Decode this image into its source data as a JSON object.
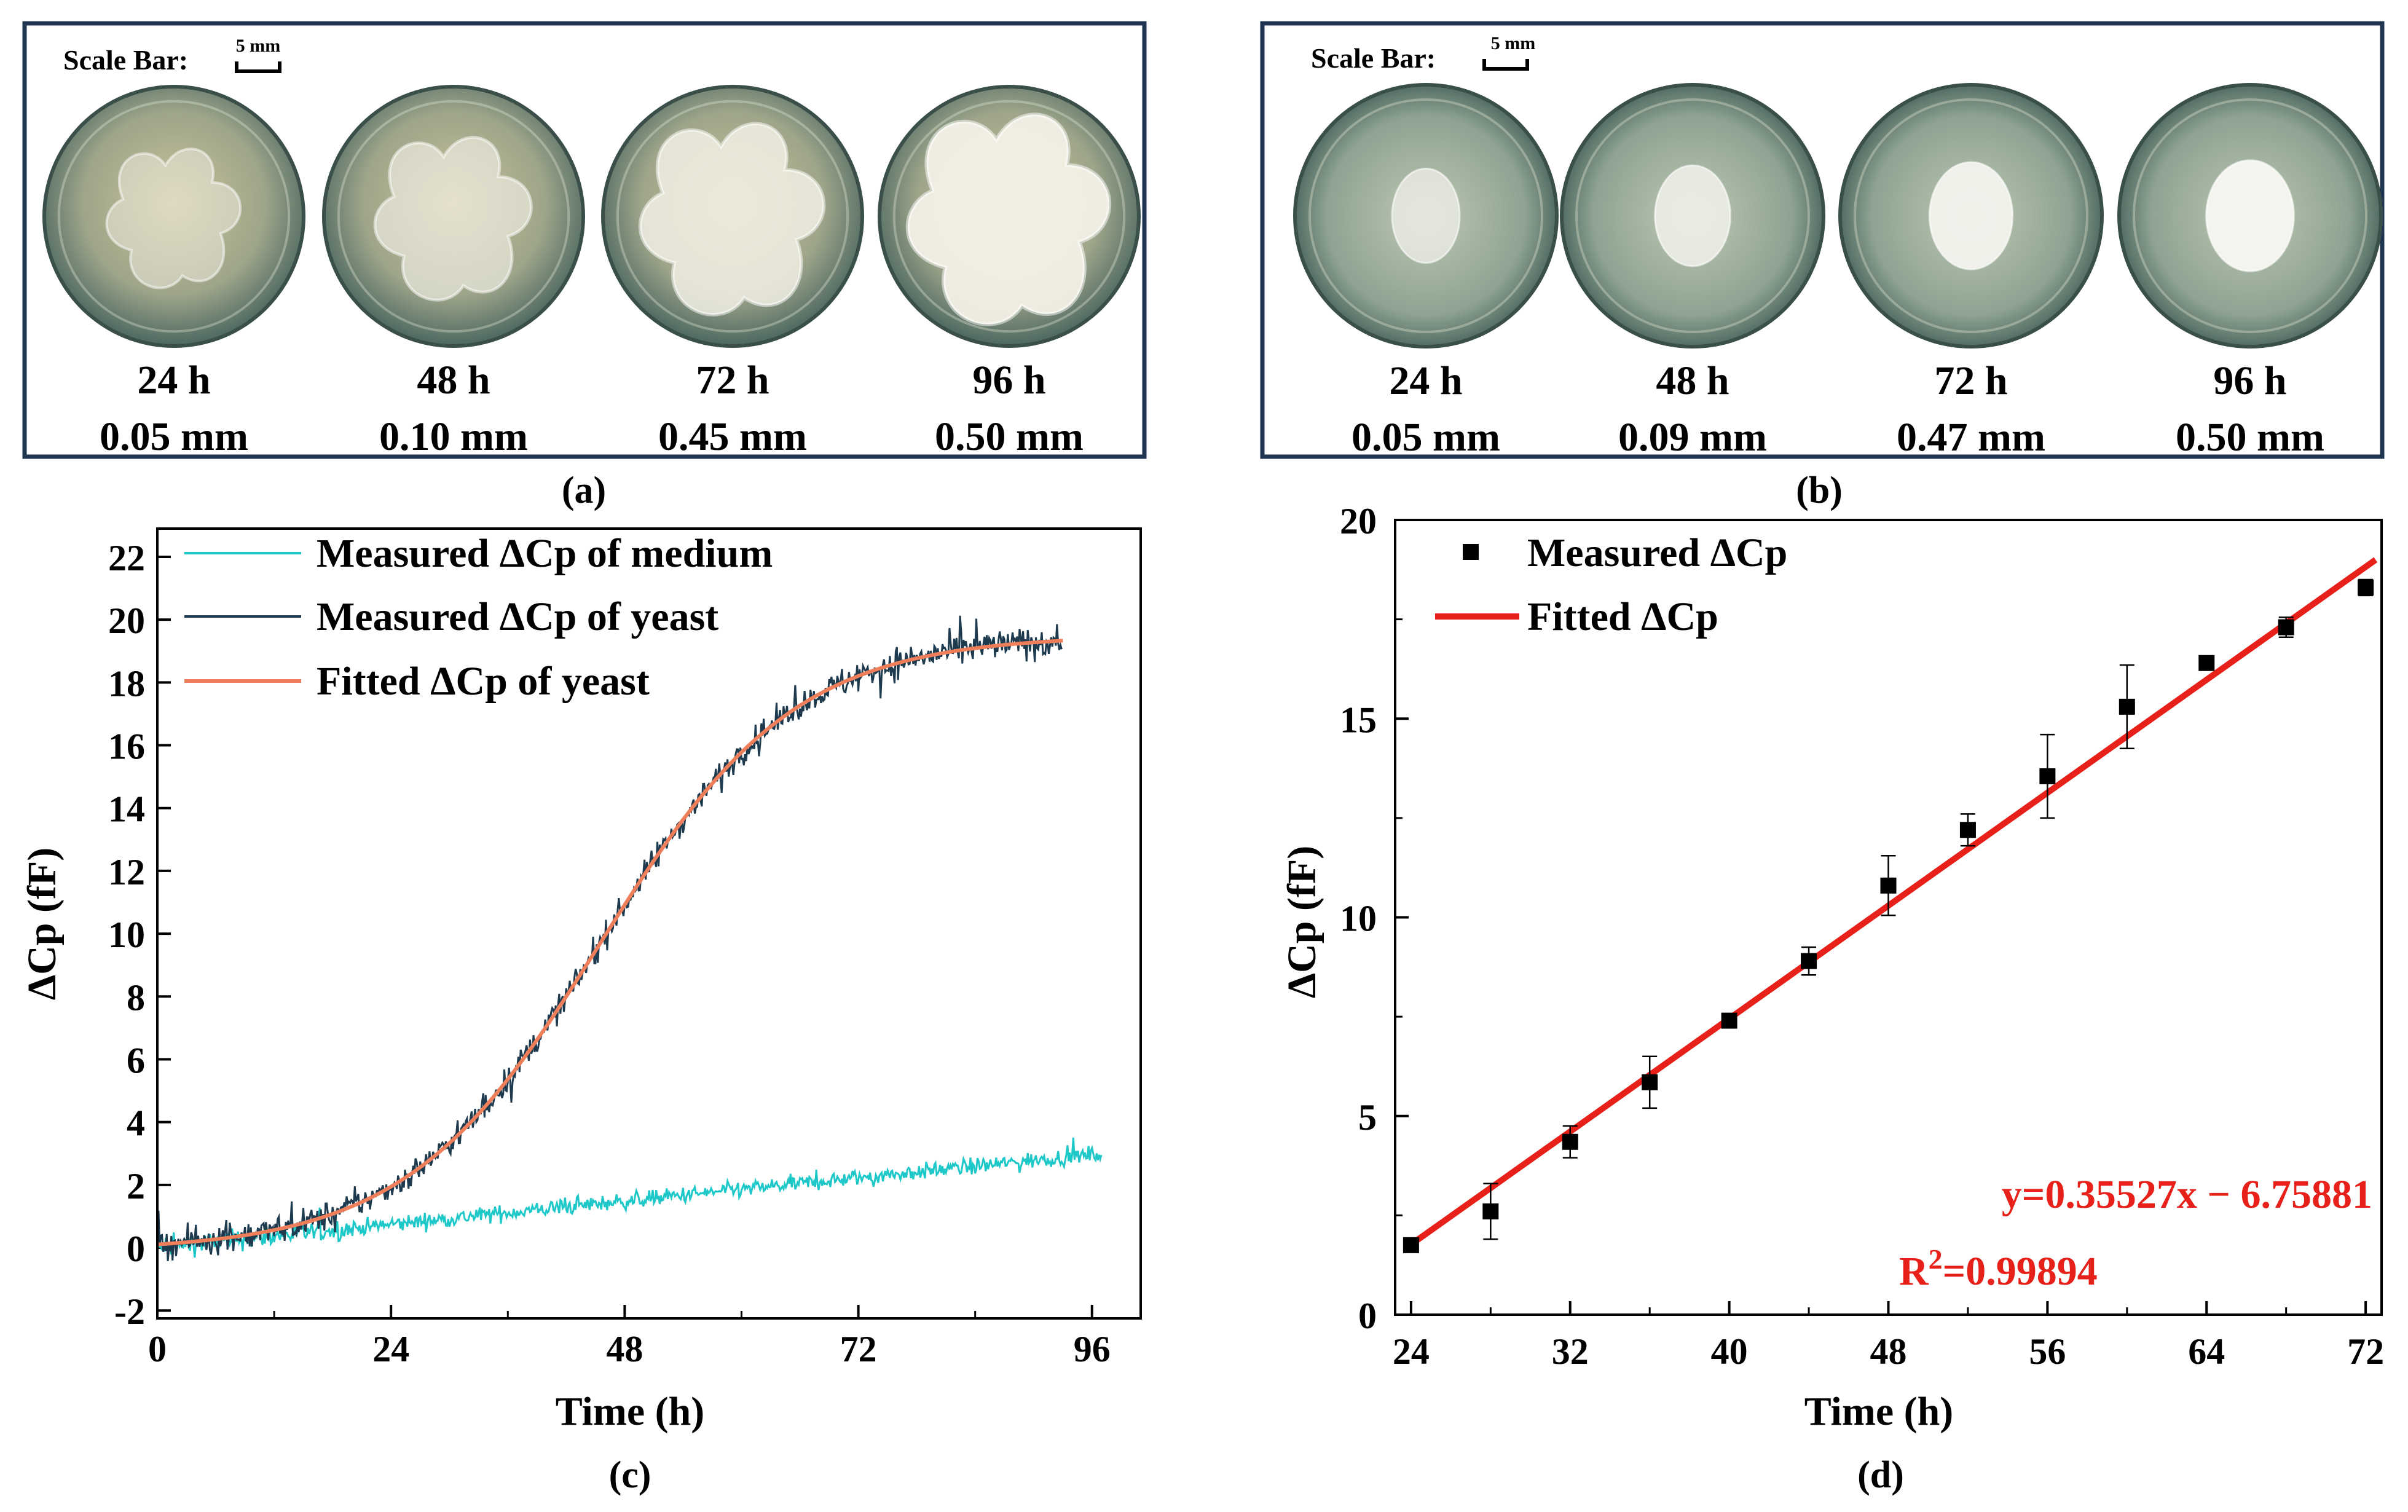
{
  "panel_a": {
    "scale_label": "Scale Bar:",
    "scale_unit": "5 mm",
    "caption": "(a)",
    "dishes": [
      {
        "time": "24 h",
        "thickness": "0.05 mm",
        "growth": 0.25
      },
      {
        "time": "48 h",
        "thickness": "0.10 mm",
        "growth": 0.5
      },
      {
        "time": "72 h",
        "thickness": "0.45 mm",
        "growth": 0.8
      },
      {
        "time": "96 h",
        "thickness": "0.50 mm",
        "growth": 1.0
      }
    ]
  },
  "panel_b": {
    "scale_label": "Scale Bar:",
    "scale_unit": "5 mm",
    "caption": "(b)",
    "dishes": [
      {
        "time": "24 h",
        "thickness": "0.05 mm",
        "growth": 0.35
      },
      {
        "time": "48 h",
        "thickness": "0.09 mm",
        "growth": 0.6
      },
      {
        "time": "72 h",
        "thickness": "0.47 mm",
        "growth": 0.85
      },
      {
        "time": "96 h",
        "thickness": "0.50 mm",
        "growth": 1.0
      }
    ]
  },
  "chart_data": [
    {
      "type": "line",
      "caption": "(c)",
      "xlabel": "Time (h)",
      "ylabel": "ΔCp (fF)",
      "xlim": [
        0,
        96
      ],
      "ylim": [
        -2,
        22
      ],
      "xticks": [
        0,
        24,
        48,
        72,
        96
      ],
      "yticks": [
        -2,
        0,
        2,
        4,
        6,
        8,
        10,
        12,
        14,
        16,
        18,
        20,
        22
      ],
      "legend_position": "top-left",
      "series": [
        {
          "name": "Measured ΔCp of medium",
          "color": "#1ec8c8",
          "model": "linear",
          "t_range": [
            0,
            97
          ],
          "start": 0.0,
          "end": 3.0,
          "noise": 0.25
        },
        {
          "name": "Measured ΔCp of yeast",
          "color": "#1d3a4e",
          "model": "logistic",
          "t_range": [
            0,
            93
          ],
          "noise": 0.55
        },
        {
          "name": "Fitted ΔCp of yeast",
          "color": "#ef7f5a",
          "model": "logistic",
          "t_range": [
            0,
            93
          ],
          "params": {
            "L": 19.6,
            "k": 0.1,
            "t0": 45.5,
            "offset": -0.1
          }
        }
      ]
    },
    {
      "type": "scatter",
      "caption": "(d)",
      "xlabel": "Time (h)",
      "ylabel": "ΔCp (fF)",
      "xlim": [
        24,
        72
      ],
      "ylim": [
        0,
        20
      ],
      "xticks": [
        24,
        32,
        40,
        48,
        56,
        64,
        72
      ],
      "yticks": [
        0,
        5,
        10,
        15,
        20
      ],
      "legend_position": "top-left",
      "series": [
        {
          "name": "Measured ΔCp",
          "color": "#000000",
          "x": [
            24,
            28,
            32,
            36,
            40,
            44,
            48,
            52,
            56,
            60,
            64,
            68,
            72
          ],
          "y": [
            1.75,
            2.6,
            4.35,
            5.85,
            7.4,
            8.9,
            10.8,
            12.2,
            13.55,
            15.3,
            16.4,
            17.3,
            18.3
          ],
          "err": [
            0.1,
            0.7,
            0.4,
            0.65,
            0.1,
            0.35,
            0.75,
            0.4,
            1.05,
            1.05,
            0.1,
            0.25,
            0.2
          ]
        },
        {
          "name": "Fitted ΔCp",
          "color": "#e8201a",
          "slope": 0.35527,
          "intercept": -6.75881,
          "x_range": [
            24,
            72.5
          ]
        }
      ],
      "equation": "y=0.35527x − 6.75881",
      "r2_prefix": "R",
      "r2_exp": "2",
      "r2_value": "=0.99894"
    }
  ]
}
